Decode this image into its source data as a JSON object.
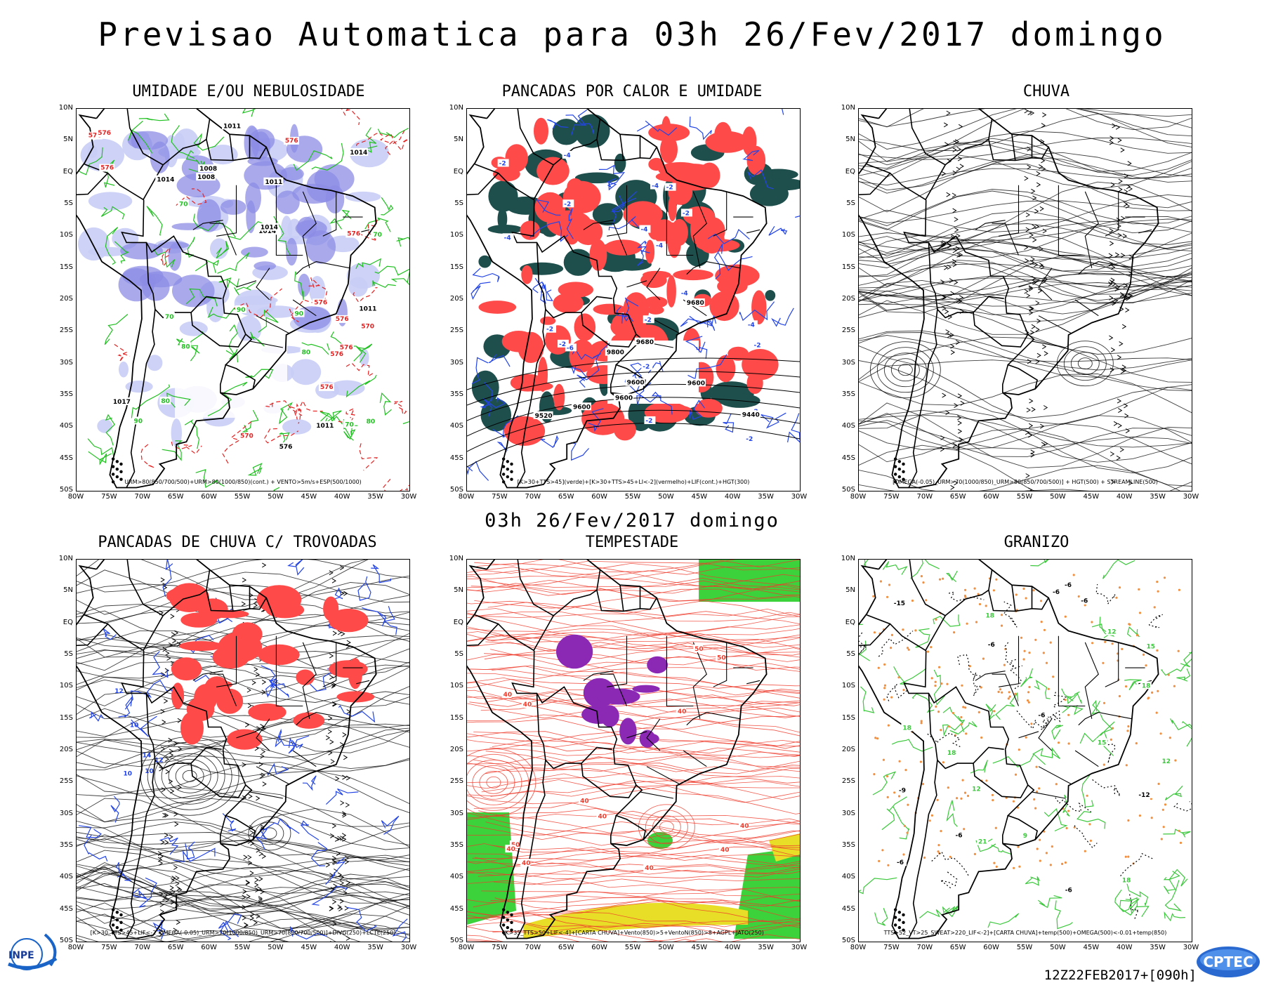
{
  "header": {
    "title": "Previsao Automatica  para 03h 26/Fev/2017 domingo",
    "subtitle": "03h 26/Fev/2017 domingo",
    "run_code": "12Z22FEB2017+[090h]"
  },
  "axes": {
    "lat_labels": [
      "10N",
      "5N",
      "EQ",
      "5S",
      "10S",
      "15S",
      "20S",
      "25S",
      "30S",
      "35S",
      "40S",
      "45S",
      "50S"
    ],
    "lon_labels": [
      "80W",
      "75W",
      "70W",
      "65W",
      "60W",
      "55W",
      "50W",
      "45W",
      "40W",
      "35W",
      "30W"
    ]
  },
  "panels": [
    {
      "title": "UMIDADE E/OU NEBULOSIDADE",
      "legend": "URM>80(850/700/500)+URM>80(1000/850)(cont.) + VENTO>5m/s+ESP(500/1000)"
    },
    {
      "title": "PANCADAS POR CALOR E UMIDADE",
      "legend": "[K>30+TTS>45](verde)+[K>30+TTS>45+LI<-2](vermelho)+LIF(cont.)+HGT(300)"
    },
    {
      "title": "CHUVA",
      "legend": "[OMEGA(-0.05)_URM>70(1000/850)_URM>80(850/700/500)] + HGT(500) + STREAMLINE(500)"
    },
    {
      "title": "PANCADAS DE CHUVA C/ TROVOADAS",
      "legend": "[K>30_TTS>45+LIF<-2_OMEGA(-0.05)_URM>70(1000/850)_URM>70(850/700/500)]+DIVG(250)+LCTE(250)"
    },
    {
      "title": "TEMPESTADE",
      "legend": "[K>35_TTS>50+LIF<-4]+[CARTA CHUVA]+Vento(850)>5+VentoN(850)>8+AGPL+JATO(250)"
    },
    {
      "title": "GRANIZO",
      "legend": "TTS>52_VT>25_SWEAT>220_LIF<-2]+[CARTA CHUVA]+temp(500)+OMEGA(500)<-0.01+temp(850)"
    }
  ],
  "contour_labels": {
    "p1": [
      "576",
      "576",
      "576",
      "576",
      "576",
      "576",
      "576",
      "570",
      "570",
      "576",
      "576",
      "576",
      "576",
      "1014",
      "1011",
      "1011",
      "1008",
      "1017",
      "1014",
      "1011",
      "1014",
      "1008",
      "1011",
      "1014",
      "90",
      "90",
      "90",
      "80",
      "70",
      "70",
      "70",
      "70",
      "80",
      "80",
      "80"
    ],
    "p2": [
      "-2",
      "-2",
      "-4",
      "-2",
      "-4",
      "-4",
      "-2",
      "-4",
      "-2",
      "-2",
      "-4",
      "-2",
      "-6",
      "-2",
      "-4",
      "-2",
      "-4",
      "-2",
      "-2",
      "-2",
      "9680",
      "9680",
      "9600",
      "9600",
      "9600",
      "9520",
      "9440",
      "9600",
      "9800"
    ],
    "p4": [
      "10",
      "10",
      "10",
      "12",
      "12",
      "14"
    ],
    "p5": [
      "40",
      "40",
      "40",
      "50",
      "50",
      "40",
      "40",
      "40",
      "40",
      "40",
      "50",
      "40",
      "40"
    ],
    "p6": [
      "-6",
      "-6",
      "-6",
      "-6",
      "-6",
      "-6",
      "-6",
      "-6",
      "18",
      "18",
      "18",
      "18",
      "21",
      "12",
      "15",
      "18",
      "15",
      "12",
      "9",
      "-9",
      "-12",
      "-15",
      "12"
    ]
  },
  "colors": {
    "humidity_light": "#c8cdf5",
    "humidity_dark": "#8c8ce6",
    "green_contour": "#21c021",
    "red_dashed": "#e52222",
    "convection_red": "#ff4a4a",
    "convection_teal": "#1f4f4c",
    "blue_contour": "#2244e6",
    "storm_red": "#ef3b2c",
    "storm_green": "#3cd23c",
    "storm_yellow": "#e8de28",
    "hail_orange": "#f09040",
    "hail_green": "#3cc83c",
    "coast": "#000000"
  },
  "logos": {
    "left": "INPE",
    "right": "CPTEC"
  }
}
